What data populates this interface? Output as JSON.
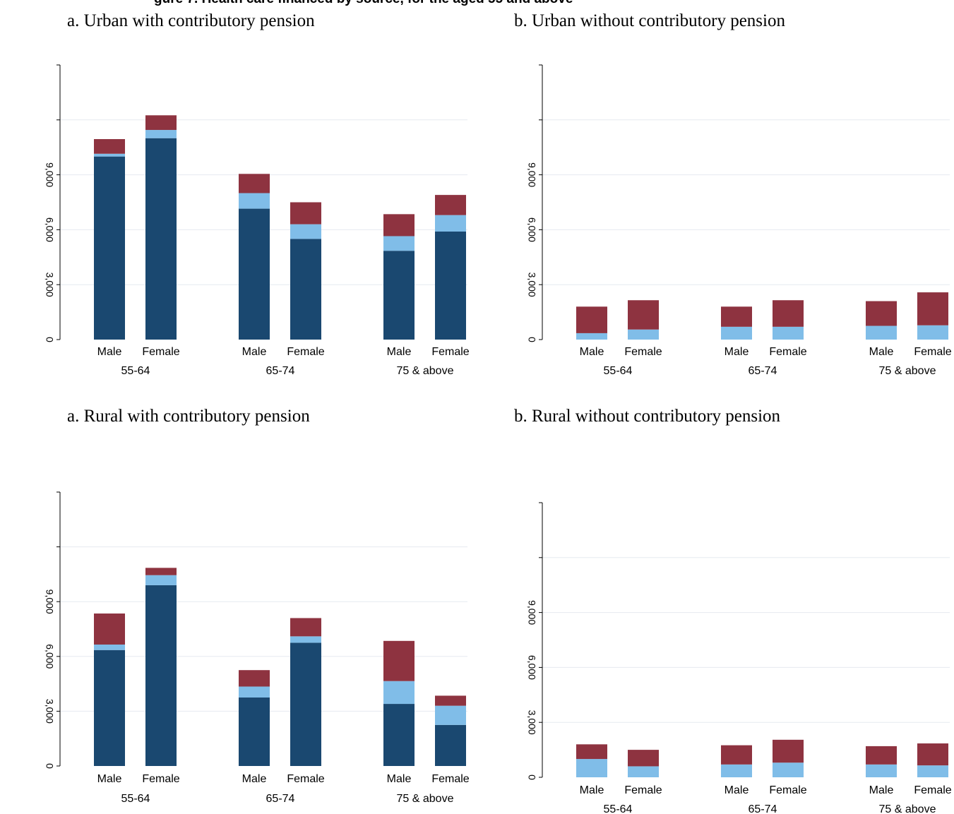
{
  "figure_title": "gure 7. Health care financed by source, for the aged 55 and above",
  "colors": {
    "dark_blue": "#1a4870",
    "light_blue": "#80bde8",
    "maroon": "#8e3340",
    "grid": "#e6eaf0",
    "axis": "#000000"
  },
  "chart_data": [
    {
      "type": "bar",
      "stacked": true,
      "title": "a.   Urban with contributory pension",
      "ylim": [
        0,
        15000
      ],
      "yticks": [
        0,
        3000,
        6000,
        9000
      ],
      "ytick_labels": [
        "0",
        "3,000",
        "6,000",
        "9,000"
      ],
      "grid": true,
      "groups": [
        "55-64",
        "65-74",
        "75 & above"
      ],
      "categories": [
        "Male",
        "Female",
        "Male",
        "Female",
        "Male",
        "Female"
      ],
      "series": [
        {
          "color": "#1a4870",
          "values": [
            10000,
            11000,
            7150,
            5500,
            4850,
            5900
          ]
        },
        {
          "color": "#80bde8",
          "values": [
            150,
            450,
            850,
            800,
            800,
            900
          ]
        },
        {
          "color": "#8e3340",
          "values": [
            800,
            800,
            1050,
            1200,
            1200,
            1100
          ]
        }
      ]
    },
    {
      "type": "bar",
      "stacked": true,
      "title": "b. Urban without contributory pension",
      "ylim": [
        0,
        15000
      ],
      "yticks": [
        0,
        3000,
        6000,
        9000
      ],
      "ytick_labels": [
        "0",
        "3,000",
        "6,000",
        "9,000"
      ],
      "grid": true,
      "groups": [
        "55-64",
        "65-74",
        "75 & above"
      ],
      "categories": [
        "Male",
        "Female",
        "Male",
        "Female",
        "Male",
        "Female"
      ],
      "series": [
        {
          "color": "#1a4870",
          "values": [
            0,
            0,
            0,
            0,
            0,
            0
          ]
        },
        {
          "color": "#80bde8",
          "values": [
            350,
            550,
            700,
            700,
            750,
            780
          ]
        },
        {
          "color": "#8e3340",
          "values": [
            1450,
            1600,
            1100,
            1450,
            1350,
            1800
          ]
        }
      ]
    },
    {
      "type": "bar",
      "stacked": true,
      "title": "a.   Rural with contributory pension",
      "ylim": [
        0,
        15000
      ],
      "yticks": [
        0,
        3000,
        6000,
        9000
      ],
      "ytick_labels": [
        "0",
        "3,000",
        "6,000",
        "9,000"
      ],
      "grid": true,
      "groups": [
        "55-64",
        "65-74",
        "75 & above"
      ],
      "categories": [
        "Male",
        "Female",
        "Male",
        "Female",
        "Male",
        "Female"
      ],
      "series": [
        {
          "color": "#1a4870",
          "values": [
            6350,
            9900,
            3750,
            6750,
            3400,
            2250
          ]
        },
        {
          "color": "#80bde8",
          "values": [
            300,
            550,
            600,
            350,
            1250,
            1050
          ]
        },
        {
          "color": "#8e3340",
          "values": [
            1700,
            400,
            900,
            1000,
            2200,
            550
          ]
        }
      ]
    },
    {
      "type": "bar",
      "stacked": true,
      "title": "b. Rural without contributory pension",
      "ylim": [
        0,
        15000
      ],
      "yticks": [
        0,
        3000,
        6000,
        9000
      ],
      "ytick_labels": [
        "0",
        "3,000",
        "6,000",
        "9,000"
      ],
      "grid": true,
      "groups": [
        "55-64",
        "65-74",
        "75 & above"
      ],
      "categories": [
        "Male",
        "Female",
        "Male",
        "Female",
        "Male",
        "Female"
      ],
      "series": [
        {
          "color": "#1a4870",
          "values": [
            0,
            0,
            0,
            0,
            0,
            0
          ]
        },
        {
          "color": "#80bde8",
          "values": [
            1000,
            600,
            700,
            800,
            700,
            650
          ]
        },
        {
          "color": "#8e3340",
          "values": [
            800,
            900,
            1050,
            1250,
            1000,
            1200
          ]
        }
      ]
    }
  ]
}
